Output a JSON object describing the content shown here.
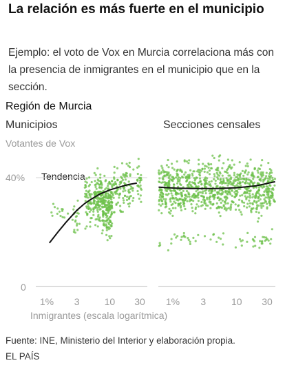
{
  "title": "La relación es más fuerte en el municipio",
  "subtitle": "Ejemplo: el voto de Vox en Murcia correlaciona más con la presencia de inmigrantes en el municipio que en la sección.",
  "region": "Región de Murcia",
  "source": "Fuente: INE, Ministerio del Interior y elaboración propia.",
  "brand": "EL PAÍS",
  "colors": {
    "points": "#6cc04a",
    "trend": "#111111",
    "grid": "#d5d5d5",
    "muted": "#9a9a9a"
  },
  "chart_data": [
    {
      "type": "scatter",
      "title": "Municipios",
      "ylabel": "Votantes de Vox",
      "xlabel": "Inmigrantes (escala logarítmica)",
      "x_scale": "log",
      "xlim": [
        0.6,
        40
      ],
      "ylim": [
        0,
        50
      ],
      "x_ticks": [
        1,
        3,
        10,
        30
      ],
      "x_tick_labels": [
        "1%",
        "3",
        "10",
        "30"
      ],
      "y_ticks": [
        0,
        40
      ],
      "y_tick_labels": [
        "0",
        "40%"
      ],
      "annotation": "Tendencia",
      "trend": {
        "x": [
          1.1,
          1.5,
          2,
          3,
          4,
          5,
          7,
          10,
          14,
          20,
          27
        ],
        "y": [
          16,
          20,
          23.5,
          28,
          30.5,
          32,
          34,
          35.5,
          36.5,
          37.5,
          38
        ]
      },
      "point_clusters": [
        {
          "x_range": [
            1.1,
            2.2
          ],
          "y_range": [
            22,
            32
          ],
          "count": 14
        },
        {
          "x_range": [
            2.5,
            3.4
          ],
          "y_range": [
            15,
            34
          ],
          "count": 20
        },
        {
          "x_range": [
            4,
            5.2
          ],
          "y_range": [
            18,
            44
          ],
          "count": 55
        },
        {
          "x_range": [
            5.5,
            7.5
          ],
          "y_range": [
            20,
            46
          ],
          "count": 110
        },
        {
          "x_range": [
            7.5,
            11
          ],
          "y_range": [
            15,
            44
          ],
          "count": 180
        },
        {
          "x_range": [
            11,
            17
          ],
          "y_range": [
            24,
            48
          ],
          "count": 60
        },
        {
          "x_range": [
            17,
            24
          ],
          "y_range": [
            25,
            48
          ],
          "count": 45
        },
        {
          "x_range": [
            27,
            32
          ],
          "y_range": [
            28,
            50
          ],
          "count": 28
        }
      ]
    },
    {
      "type": "scatter",
      "title": "Secciones censales",
      "x_scale": "log",
      "xlim": [
        0.6,
        40
      ],
      "ylim": [
        0,
        50
      ],
      "x_ticks": [
        1,
        3,
        10,
        30
      ],
      "x_tick_labels": [
        "1%",
        "3",
        "10",
        "30"
      ],
      "trend": {
        "x": [
          0.6,
          1,
          2,
          3,
          5,
          10,
          20,
          40
        ],
        "y": [
          36.5,
          36.2,
          36,
          36,
          36,
          36.3,
          37,
          38.5
        ]
      },
      "point_clusters": [
        {
          "x_range": [
            0.6,
            40
          ],
          "y_range": [
            22,
            50
          ],
          "count": 900
        },
        {
          "x_range": [
            0.6,
            40
          ],
          "y_range": [
            12,
            22
          ],
          "count": 60
        }
      ]
    }
  ]
}
